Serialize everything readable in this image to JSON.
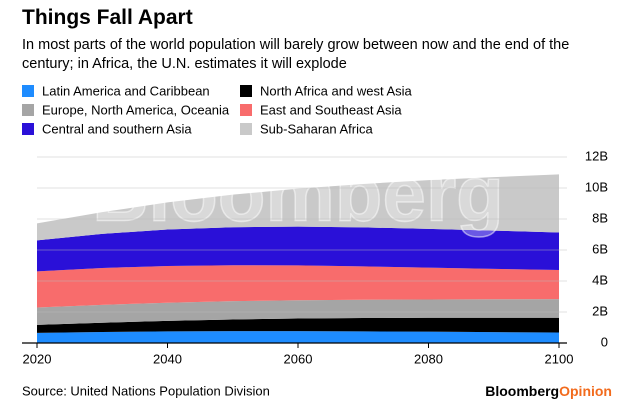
{
  "chart_data": {
    "type": "area",
    "stacked": true,
    "title": "Things Fall Apart",
    "subtitle": "In most parts of the world population will barely grow between now and the end of the century; in Africa, the U.N. estimates it will explode",
    "watermark": "Bloomberg",
    "source": "Source: United Nations Population Division",
    "branding": {
      "name": "Bloomberg",
      "suffix": "Opinion"
    },
    "x": [
      2020,
      2030,
      2040,
      2050,
      2060,
      2070,
      2080,
      2090,
      2100
    ],
    "xlim": [
      2020,
      2100
    ],
    "xticks": [
      2020,
      2040,
      2060,
      2080,
      2100
    ],
    "ylim": [
      0,
      12
    ],
    "yticks": [
      0,
      {
        "value": 2,
        "label": "2B"
      },
      {
        "value": 4,
        "label": "4B"
      },
      {
        "value": 6,
        "label": "6B"
      },
      {
        "value": 8,
        "label": "8B"
      },
      {
        "value": 10,
        "label": "10B"
      },
      {
        "value": 12,
        "label": "12B"
      }
    ],
    "grid": true,
    "series": [
      {
        "name": "Latin America and Caribbean",
        "color": "#1e8cff",
        "values": [
          0.65,
          0.71,
          0.75,
          0.77,
          0.77,
          0.75,
          0.73,
          0.7,
          0.68
        ]
      },
      {
        "name": "North Africa and west Asia",
        "color": "#000000",
        "values": [
          0.52,
          0.6,
          0.68,
          0.75,
          0.81,
          0.86,
          0.9,
          0.93,
          0.95
        ]
      },
      {
        "name": "Europe, North America, Oceania",
        "color": "#a5a5a5",
        "values": [
          1.12,
          1.15,
          1.17,
          1.18,
          1.18,
          1.18,
          1.18,
          1.19,
          1.2
        ]
      },
      {
        "name": "East and Southeast Asia",
        "color": "#f86c6c",
        "values": [
          2.33,
          2.38,
          2.37,
          2.32,
          2.25,
          2.15,
          2.05,
          1.96,
          1.88
        ]
      },
      {
        "name": "Central and southern Asia",
        "color": "#2a10d8",
        "values": [
          2.0,
          2.2,
          2.35,
          2.45,
          2.5,
          2.52,
          2.5,
          2.47,
          2.42
        ]
      },
      {
        "name": "Sub-Saharan Africa",
        "color": "#c9c9c9",
        "values": [
          1.1,
          1.4,
          1.75,
          2.1,
          2.45,
          2.8,
          3.15,
          3.45,
          3.75
        ]
      }
    ]
  }
}
